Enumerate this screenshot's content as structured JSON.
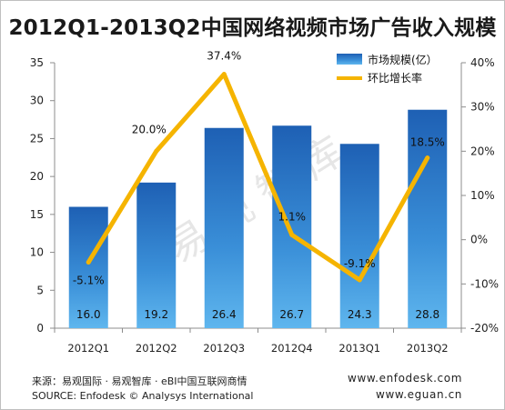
{
  "title": "2012Q1-2013Q2中国网络视频市场广告收入规模",
  "watermark": "易观智库",
  "source_cn": "来源：易观国际 · 易观智库 · eBI中国互联网商情",
  "source_en": "SOURCE: Enfodesk © Analysys International",
  "url1": "www.enfodesk.com",
  "url2": "www.eguan.cn",
  "chart_data": {
    "type": "bar",
    "categories": [
      "2012Q1",
      "2012Q2",
      "2012Q3",
      "2012Q4",
      "2013Q1",
      "2013Q2"
    ],
    "series": [
      {
        "name": "市场规模(亿）",
        "type": "bar",
        "axis": "left",
        "values": [
          16.0,
          19.2,
          26.4,
          26.7,
          24.3,
          28.8
        ],
        "labels": [
          "16.0",
          "19.2",
          "26.4",
          "26.7",
          "24.3",
          "28.8"
        ],
        "color": "#1f6dbf"
      },
      {
        "name": "环比增长率",
        "type": "line",
        "axis": "right",
        "values": [
          -5.1,
          20.0,
          37.4,
          1.1,
          -9.1,
          18.5
        ],
        "labels": [
          "-5.1%",
          "20.0%",
          "37.4%",
          "1.1%",
          "-9.1%",
          "18.5%"
        ],
        "color": "#f5b400"
      }
    ],
    "ylim": [
      0,
      35
    ],
    "yticks": [
      "0",
      "5",
      "10",
      "15",
      "20",
      "25",
      "30",
      "35"
    ],
    "y2lim": [
      -20,
      40
    ],
    "y2ticks": [
      "-20%",
      "-10%",
      "0%",
      "10%",
      "20%",
      "30%",
      "40%"
    ],
    "legend_position": "top-right",
    "grid": false
  }
}
